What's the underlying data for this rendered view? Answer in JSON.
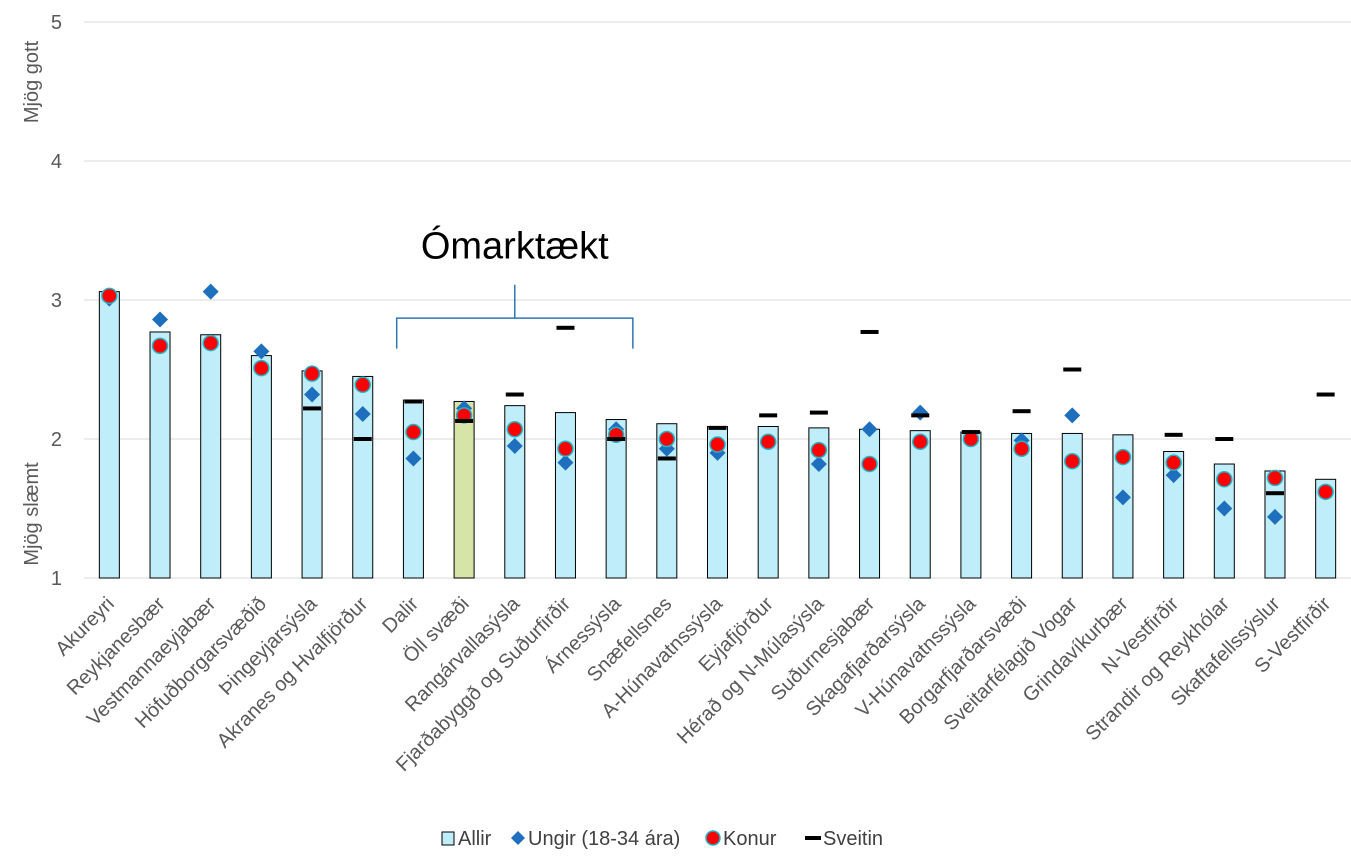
{
  "chart_data": {
    "type": "bar",
    "ylim": [
      1,
      5
    ],
    "yticks": [
      1,
      2,
      3,
      4,
      5
    ],
    "grid": true,
    "legend_position": "bottom",
    "ylabel_top": "Mjög gott",
    "ylabel_bottom": "Mjög slæmt",
    "annotation": {
      "text": "Ómarktækt",
      "from_category": "Dalir",
      "to_category": "Árnessýsla"
    },
    "categories": [
      "Akureyri",
      "Reykjanesbær",
      "Vestmannaeyjabær",
      "Höfuðborgarsvæðið",
      "Þingeyjarsýsla",
      "Akranes og Hvalfjörður",
      "Dalir",
      "Öll svæði",
      "Rangárvallasýsla",
      "Fjarðabyggð og Suðurfirðir",
      "Árnessýsla",
      "Snæfellsnes",
      "A-Húnavatnssýsla",
      "Eyjafjörður",
      "Hérað og N-Múlasýsla",
      "Suðurnesjabær",
      "Skagafjarðarsýsla",
      "V-Húnavatnssýsla",
      "Borgarfjarðarsvæði",
      "Sveitarfélagið Vogar",
      "Grindavíkurbær",
      "N-Vestfirðir",
      "Strandir og Reykhólar",
      "Skaftafellssýslur",
      "S-Vestfirðir"
    ],
    "highlight_category": "Öll svæði",
    "series": [
      {
        "name": "Allir",
        "kind": "bar",
        "color": "#bfeefa",
        "highlight_color": "#d6e4a8",
        "values": [
          3.06,
          2.77,
          2.75,
          2.6,
          2.49,
          2.45,
          2.28,
          2.27,
          2.24,
          2.19,
          2.14,
          2.11,
          2.09,
          2.09,
          2.08,
          2.07,
          2.06,
          2.05,
          2.04,
          2.04,
          2.03,
          1.91,
          1.82,
          1.77,
          1.71
        ]
      },
      {
        "name": "Ungir (18-34 ára)",
        "kind": "marker",
        "shape": "diamond",
        "color": "#1f6fbf",
        "values": [
          3.01,
          2.86,
          3.06,
          2.63,
          2.32,
          2.18,
          1.86,
          2.22,
          1.95,
          1.83,
          2.07,
          1.93,
          1.9,
          1.98,
          1.82,
          2.07,
          2.19,
          2.01,
          1.99,
          2.17,
          1.58,
          1.74,
          1.5,
          1.44,
          1.62
        ]
      },
      {
        "name": "Konur",
        "kind": "marker",
        "shape": "circle",
        "color": "#ff0000",
        "values": [
          3.03,
          2.67,
          2.69,
          2.51,
          2.47,
          2.39,
          2.05,
          2.17,
          2.07,
          1.93,
          2.03,
          2.0,
          1.96,
          1.98,
          1.92,
          1.82,
          1.98,
          2.0,
          1.93,
          1.84,
          1.87,
          1.83,
          1.71,
          1.72,
          1.62
        ]
      },
      {
        "name": "Sveitin",
        "kind": "marker",
        "shape": "dash",
        "color": "#000000",
        "values": [
          null,
          null,
          null,
          null,
          2.22,
          2.0,
          2.27,
          2.13,
          2.32,
          2.8,
          2.0,
          1.86,
          2.08,
          2.17,
          2.19,
          2.77,
          2.17,
          2.05,
          2.2,
          2.5,
          null,
          2.03,
          2.0,
          1.61,
          2.32
        ]
      }
    ]
  }
}
